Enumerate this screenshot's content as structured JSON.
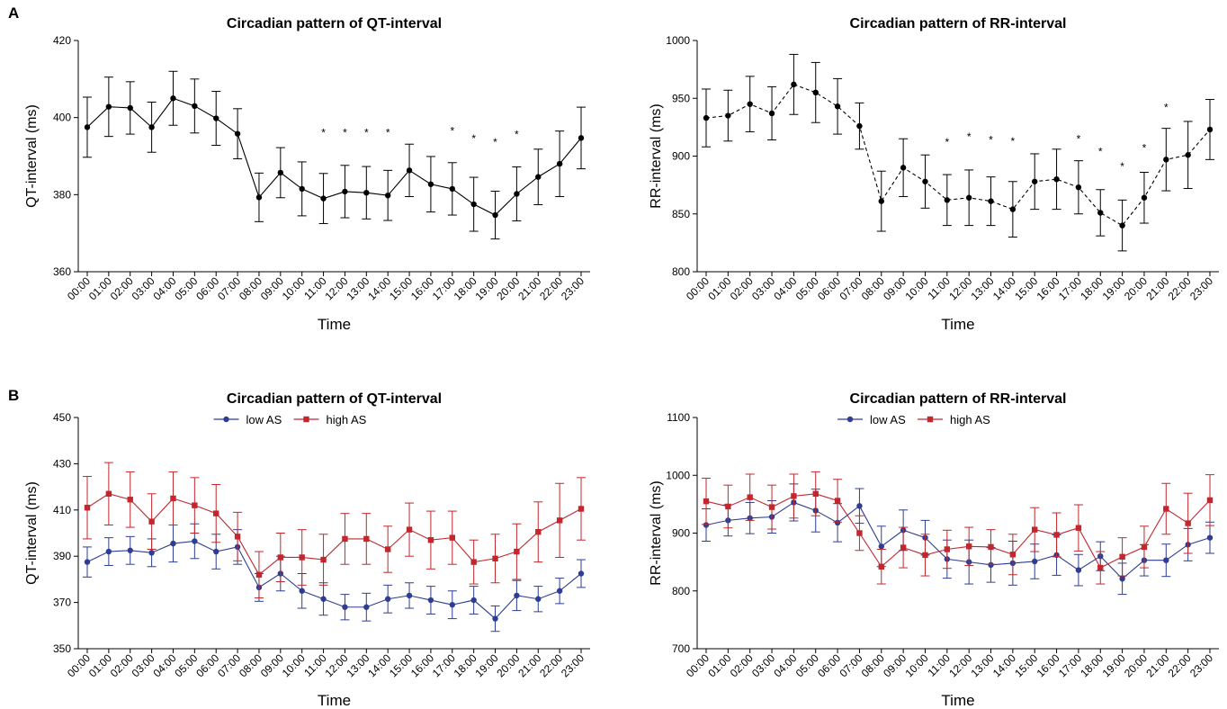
{
  "panels": [
    {
      "label": "A"
    },
    {
      "label": "B"
    }
  ],
  "chart_data": [
    {
      "type": "line",
      "title": "Circadian pattern of QT-interval",
      "xlabel": "Time",
      "ylabel": "QT-interval (ms)",
      "ylim": [
        360,
        420
      ],
      "yticks": [
        360,
        380,
        400,
        420
      ],
      "categories": [
        "00:00",
        "01:00",
        "02:00",
        "03:00",
        "04:00",
        "05:00",
        "06:00",
        "07:00",
        "08:00",
        "09:00",
        "10:00",
        "11:00",
        "12:00",
        "13:00",
        "14:00",
        "15:00",
        "16:00",
        "17:00",
        "18:00",
        "19:00",
        "20:00",
        "21:00",
        "22:00",
        "23:00"
      ],
      "series": [
        {
          "values": [
            397.5,
            402.8,
            402.5,
            397.5,
            405,
            403,
            399.8,
            395.8,
            379.3,
            385.7,
            381.5,
            379,
            380.8,
            380.5,
            379.8,
            386.3,
            382.7,
            381.5,
            377.5,
            374.7,
            380.2,
            384.6,
            388,
            394.7
          ],
          "error": [
            7.8,
            7.7,
            6.8,
            6.5,
            7,
            7,
            7,
            6.5,
            6.3,
            6.5,
            7,
            6.5,
            6.8,
            6.8,
            6.5,
            6.8,
            7.2,
            6.8,
            7,
            6.2,
            7,
            7.2,
            8.5,
            8
          ],
          "color": "#000000",
          "dash": false,
          "marker": "circle"
        }
      ],
      "annotations": [
        {
          "x": "11:00",
          "text": "*",
          "y": 397
        },
        {
          "x": "12:00",
          "text": "*",
          "y": 397
        },
        {
          "x": "13:00",
          "text": "*",
          "y": 397
        },
        {
          "x": "14:00",
          "text": "*",
          "y": 397
        },
        {
          "x": "17:00",
          "text": "*",
          "y": 397.5
        },
        {
          "x": "18:00",
          "text": "*",
          "y": 395.5
        },
        {
          "x": "19:00",
          "text": "*",
          "y": 394.5
        },
        {
          "x": "20:00",
          "text": "*",
          "y": 396.5
        }
      ]
    },
    {
      "type": "line",
      "title": "Circadian pattern of RR-interval",
      "xlabel": "Time",
      "ylabel": "RR-interval (ms)",
      "ylim": [
        800,
        1000
      ],
      "yticks": [
        800,
        850,
        900,
        950,
        1000
      ],
      "categories": [
        "00:00",
        "01:00",
        "02:00",
        "03:00",
        "04:00",
        "05:00",
        "06:00",
        "07:00",
        "08:00",
        "09:00",
        "10:00",
        "11:00",
        "12:00",
        "13:00",
        "14:00",
        "15:00",
        "16:00",
        "17:00",
        "18:00",
        "19:00",
        "20:00",
        "21:00",
        "22:00",
        "23:00"
      ],
      "series": [
        {
          "values": [
            933,
            935,
            945,
            937,
            962,
            955,
            943,
            926,
            861,
            890,
            878,
            862,
            864,
            861,
            854,
            878,
            880,
            873,
            851,
            840,
            864,
            897,
            901,
            923
          ],
          "error": [
            25,
            22,
            24,
            23,
            26,
            26,
            24,
            20,
            26,
            25,
            23,
            22,
            24,
            21,
            24,
            24,
            26,
            23,
            20,
            22,
            22,
            27,
            29,
            26
          ],
          "color": "#000000",
          "dash": true,
          "marker": "circle"
        }
      ],
      "annotations": [
        {
          "x": "11:00",
          "text": "*",
          "y": 915
        },
        {
          "x": "12:00",
          "text": "*",
          "y": 920
        },
        {
          "x": "13:00",
          "text": "*",
          "y": 917
        },
        {
          "x": "14:00",
          "text": "*",
          "y": 916
        },
        {
          "x": "17:00",
          "text": "*",
          "y": 918
        },
        {
          "x": "18:00",
          "text": "*",
          "y": 907
        },
        {
          "x": "19:00",
          "text": "*",
          "y": 894
        },
        {
          "x": "20:00",
          "text": "*",
          "y": 910
        },
        {
          "x": "21:00",
          "text": "*",
          "y": 945
        }
      ]
    },
    {
      "type": "line",
      "title": "Circadian pattern of QT-interval",
      "xlabel": "Time",
      "ylabel": "QT-interval (ms)",
      "ylim": [
        350,
        450
      ],
      "yticks": [
        350,
        370,
        390,
        410,
        430,
        450
      ],
      "legend": "top-center",
      "categories": [
        "00:00",
        "01:00",
        "02:00",
        "03:00",
        "04:00",
        "05:00",
        "06:00",
        "07:00",
        "08:00",
        "09:00",
        "10:00",
        "11:00",
        "12:00",
        "13:00",
        "14:00",
        "15:00",
        "16:00",
        "17:00",
        "18:00",
        "19:00",
        "20:00",
        "21:00",
        "22:00",
        "23:00"
      ],
      "series": [
        {
          "name": "low AS",
          "color": "#2e3d91",
          "marker": "circle",
          "values": [
            387.5,
            392,
            392.5,
            391.5,
            395.5,
            396.5,
            392,
            394,
            376.5,
            382.5,
            375,
            371.5,
            368,
            368,
            371.5,
            373,
            371,
            369,
            371,
            363,
            373,
            371.5,
            375,
            382.5
          ],
          "error": [
            6.5,
            6,
            6,
            6,
            8,
            7.5,
            7.5,
            7.5,
            6,
            7.5,
            7.5,
            7,
            5.5,
            6,
            6,
            5.5,
            6,
            6,
            6,
            5.5,
            6.5,
            5.5,
            5.5,
            6
          ]
        },
        {
          "name": "high AS",
          "color": "#c1272d",
          "marker": "square",
          "values": [
            411,
            417,
            414.5,
            405,
            415,
            412,
            408.5,
            398.5,
            382,
            389.5,
            389.5,
            388.5,
            397.5,
            397.5,
            393,
            401.5,
            397,
            398,
            387.5,
            389,
            392,
            400.5,
            405.5,
            410.5
          ],
          "error": [
            13.5,
            13.5,
            12,
            12,
            11.5,
            12,
            12.5,
            10.5,
            10,
            10.5,
            12,
            11,
            11,
            11,
            10,
            11.5,
            12.5,
            11.5,
            9.5,
            10.5,
            12,
            13,
            16,
            13.5
          ]
        }
      ]
    },
    {
      "type": "line",
      "title": "Circadian pattern of RR-interval",
      "xlabel": "Time",
      "ylabel": "RR-interval (ms)",
      "ylim": [
        700,
        1100
      ],
      "yticks": [
        700,
        800,
        900,
        1000,
        1100
      ],
      "legend": "top-center",
      "categories": [
        "00:00",
        "01:00",
        "02:00",
        "03:00",
        "04:00",
        "05:00",
        "06:00",
        "07:00",
        "08:00",
        "09:00",
        "10:00",
        "11:00",
        "12:00",
        "13:00",
        "14:00",
        "15:00",
        "16:00",
        "17:00",
        "18:00",
        "19:00",
        "20:00",
        "21:00",
        "22:00",
        "23:00"
      ],
      "series": [
        {
          "name": "low AS",
          "color": "#2e3d91",
          "marker": "circle",
          "values": [
            914,
            922,
            926,
            928,
            953,
            939,
            918,
            947,
            877,
            905,
            892,
            855,
            850,
            845,
            848,
            851,
            862,
            836,
            860,
            821,
            853,
            853,
            880,
            892
          ],
          "error": [
            28,
            27,
            27,
            28,
            32,
            37,
            33,
            30,
            35,
            35,
            30,
            33,
            38,
            30,
            38,
            30,
            35,
            27,
            25,
            27,
            27,
            28,
            28,
            27
          ]
        },
        {
          "name": "high AS",
          "color": "#c1272d",
          "marker": "square",
          "values": [
            955,
            946,
            962,
            945,
            964,
            968,
            956,
            900,
            842,
            875,
            862,
            872,
            877,
            876,
            863,
            906,
            897,
            909,
            840,
            859,
            876,
            942,
            917,
            957
          ],
          "error": [
            40,
            37,
            40,
            38,
            38,
            38,
            37,
            30,
            30,
            35,
            36,
            33,
            33,
            30,
            35,
            38,
            38,
            40,
            28,
            33,
            36,
            44,
            52,
            44
          ]
        }
      ]
    }
  ]
}
